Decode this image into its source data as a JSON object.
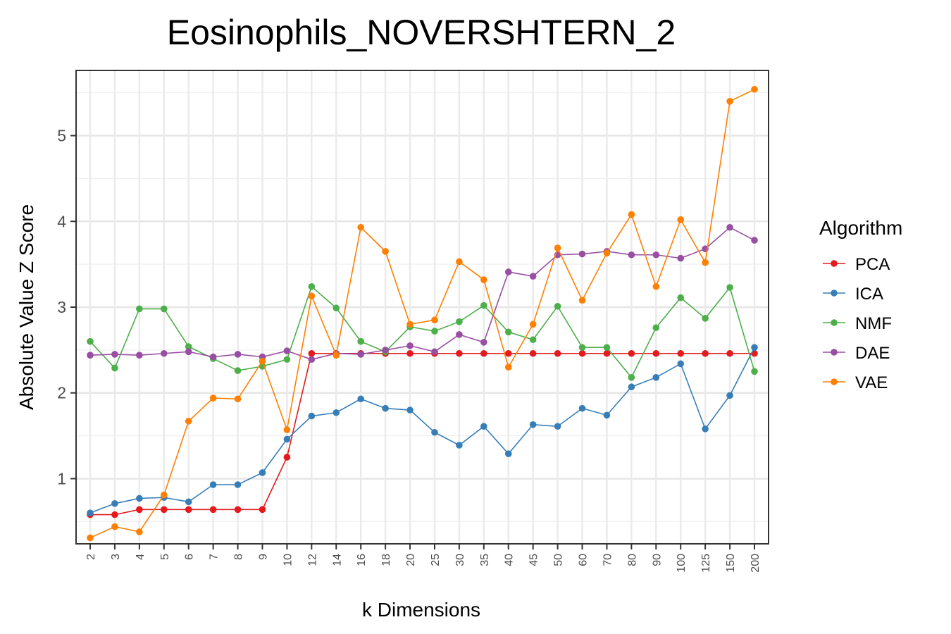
{
  "chart_data": {
    "type": "line",
    "title": "Eosinophils_NOVERSHTERN_2",
    "xlabel": "k Dimensions",
    "ylabel": "Absolute Value Z Score",
    "categories": [
      "2",
      "3",
      "4",
      "5",
      "6",
      "7",
      "8",
      "9",
      "10",
      "12",
      "14",
      "16",
      "18",
      "20",
      "25",
      "30",
      "35",
      "40",
      "45",
      "50",
      "60",
      "70",
      "80",
      "90",
      "100",
      "125",
      "150",
      "200"
    ],
    "y_ticks": [
      1,
      2,
      3,
      4,
      5
    ],
    "ylim": [
      0.24,
      5.76
    ],
    "grid": true,
    "legend": {
      "title": "Algorithm",
      "position": "right"
    },
    "series": [
      {
        "name": "PCA",
        "color": "#e41a1c",
        "values": [
          0.58,
          0.58,
          0.64,
          0.64,
          0.64,
          0.64,
          0.64,
          0.64,
          1.25,
          2.46,
          2.46,
          2.46,
          2.46,
          2.46,
          2.46,
          2.46,
          2.46,
          2.46,
          2.46,
          2.46,
          2.46,
          2.46,
          2.46,
          2.46,
          2.46,
          2.46,
          2.46,
          2.46
        ]
      },
      {
        "name": "ICA",
        "color": "#377eb8",
        "values": [
          0.6,
          0.71,
          0.77,
          0.78,
          0.73,
          0.93,
          0.93,
          1.07,
          1.46,
          1.73,
          1.77,
          1.93,
          1.82,
          1.8,
          1.54,
          1.39,
          1.61,
          1.29,
          1.63,
          1.61,
          1.82,
          1.74,
          2.07,
          2.18,
          2.34,
          1.58,
          1.97,
          2.53
        ]
      },
      {
        "name": "NMF",
        "color": "#4daf4a",
        "values": [
          2.6,
          2.29,
          2.98,
          2.98,
          2.54,
          2.4,
          2.26,
          2.31,
          2.39,
          3.24,
          2.99,
          2.6,
          2.48,
          2.77,
          2.72,
          2.83,
          3.02,
          2.71,
          2.62,
          3.01,
          2.53,
          2.53,
          2.18,
          2.76,
          3.11,
          2.87,
          3.23,
          2.25
        ]
      },
      {
        "name": "DAE",
        "color": "#984ea3",
        "values": [
          2.44,
          2.45,
          2.44,
          2.46,
          2.48,
          2.42,
          2.45,
          2.42,
          2.49,
          2.39,
          2.46,
          2.45,
          2.5,
          2.55,
          2.48,
          2.68,
          2.59,
          3.41,
          3.36,
          3.61,
          3.62,
          3.65,
          3.61,
          3.61,
          3.57,
          3.68,
          3.93,
          3.78
        ]
      },
      {
        "name": "VAE",
        "color": "#ff7f00",
        "values": [
          0.31,
          0.44,
          0.38,
          0.81,
          1.67,
          1.94,
          1.93,
          2.37,
          1.57,
          3.13,
          2.44,
          3.93,
          3.65,
          2.8,
          2.85,
          3.53,
          3.32,
          2.3,
          2.8,
          3.69,
          3.08,
          3.63,
          4.08,
          3.24,
          4.02,
          3.52,
          5.4,
          5.54
        ]
      }
    ]
  }
}
